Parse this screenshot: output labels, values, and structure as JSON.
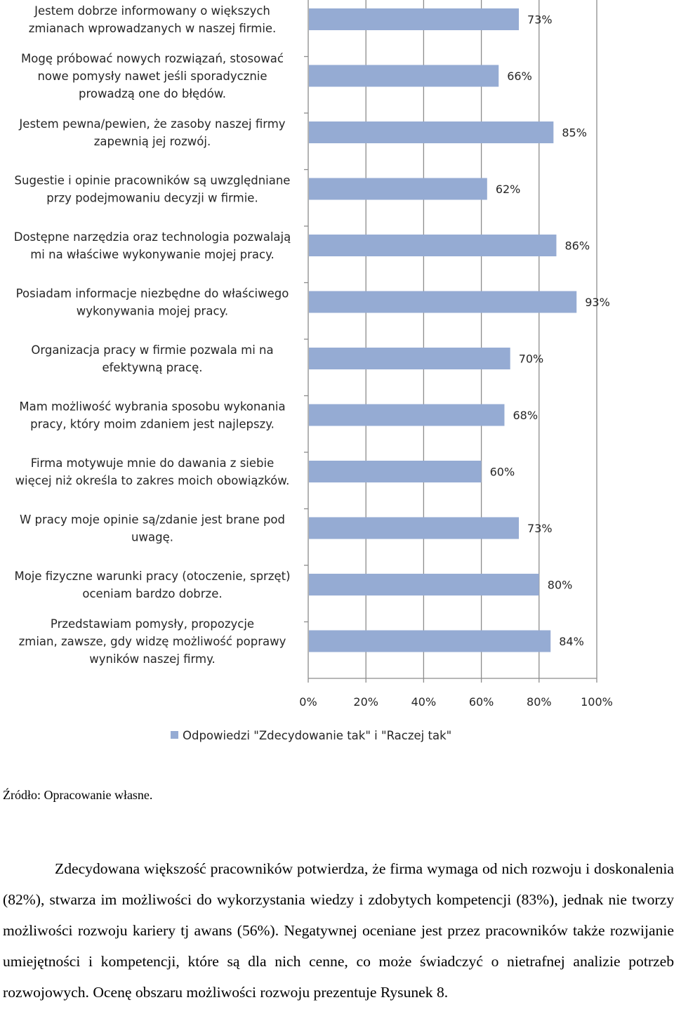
{
  "chart_data": {
    "type": "bar",
    "orientation": "horizontal",
    "categories": [
      "Jestem dobrze informowany o większych zmianach wprowadzanych w naszej firmie.",
      "Mogę próbować nowych rozwiązań, stosować nowe pomysły nawet jeśli sporadycznie prowadzą one do błędów.",
      "Jestem pewna/pewien, że zasoby naszej firmy zapewnią jej rozwój.",
      "Sugestie i opinie pracowników są uwzględniane przy podejmowaniu decyzji w firmie.",
      "Dostępne narzędzia oraz technologia pozwalają mi na właściwe wykonywanie mojej pracy.",
      "Posiadam informacje niezbędne do właściwego wykonywania mojej pracy.",
      "Organizacja pracy w firmie pozwala mi na efektywną pracę.",
      "Mam możliwość wybrania sposobu wykonania pracy, który moim zdaniem jest najlepszy.",
      "Firma motywuje mnie do dawania z siebie więcej niż określa to zakres moich obowiązków.",
      "W pracy moje opinie są/zdanie jest brane pod uwagę.",
      "Moje fizyczne warunki pracy (otoczenie, sprzęt) oceniam bardzo dobrze.",
      "Przedstawiam pomysły, propozycje zmian, zawsze, gdy widzę możliwość poprawy wyników naszej firmy."
    ],
    "category_lines": [
      [
        "Jestem dobrze informowany o większych",
        "zmianach wprowadzanych w naszej firmie."
      ],
      [
        "Mogę próbować nowych rozwiązań, stosować",
        "nowe pomysły nawet jeśli sporadycznie",
        "prowadzą one do błędów."
      ],
      [
        "Jestem pewna/pewien, że zasoby naszej firmy",
        "zapewnią jej rozwój."
      ],
      [
        "Sugestie i opinie pracowników są uwzględniane",
        "przy podejmowaniu decyzji w firmie."
      ],
      [
        "Dostępne narzędzia oraz technologia pozwalają",
        "mi na właściwe wykonywanie mojej pracy."
      ],
      [
        "Posiadam informacje niezbędne do właściwego",
        "wykonywania mojej pracy."
      ],
      [
        "Organizacja pracy w firmie pozwala mi na",
        "efektywną pracę."
      ],
      [
        "Mam możliwość wybrania sposobu wykonania",
        "pracy, który moim zdaniem jest najlepszy."
      ],
      [
        "Firma motywuje mnie do dawania z siebie",
        "więcej niż określa to zakres moich obowiązków."
      ],
      [
        "W pracy moje opinie są/zdanie jest brane pod",
        "uwagę."
      ],
      [
        "Moje fizyczne warunki pracy (otoczenie, sprzęt)",
        "oceniam bardzo dobrze."
      ],
      [
        "Przedstawiam pomysły, propozycje",
        "zmian, zawsze, gdy widzę możliwość poprawy",
        "wyników naszej firmy."
      ]
    ],
    "series": [
      {
        "name": "Odpowiedzi \"Zdecydowanie tak\" i \"Raczej tak\"",
        "values": [
          73,
          66,
          85,
          62,
          86,
          93,
          70,
          68,
          60,
          73,
          80,
          84
        ],
        "color": "#95abd3"
      }
    ],
    "value_labels": [
      "73%",
      "66%",
      "85%",
      "62%",
      "86%",
      "93%",
      "70%",
      "68%",
      "60%",
      "73%",
      "80%",
      "84%"
    ],
    "xlim": [
      0,
      100
    ],
    "x_ticks": [
      0,
      20,
      40,
      60,
      80,
      100
    ],
    "x_tick_labels": [
      "0%",
      "20%",
      "40%",
      "60%",
      "80%",
      "100%"
    ],
    "grid": {
      "vertical": true,
      "color": "#8c8c8c"
    },
    "legend": {
      "position": "bottom"
    },
    "title": "",
    "xlabel": "",
    "ylabel": ""
  },
  "source_note": "Źródło: Opracowanie własne.",
  "paragraph": "Zdecydowana większość pracowników potwierdza, że firma wymaga od nich rozwoju i doskonalenia (82%), stwarza im możliwości do wykorzystania wiedzy i zdobytych kompetencji (83%), jednak nie tworzy możliwości rozwoju kariery tj awans (56%). Negatywnej oceniane jest przez pracowników także rozwijanie umiejętności i kompetencji, które są dla nich cenne, co może świadczyć o nietrafnej analizie potrzeb rozwojowych. Ocenę obszaru możliwości rozwoju prezentuje Rysunek 8."
}
